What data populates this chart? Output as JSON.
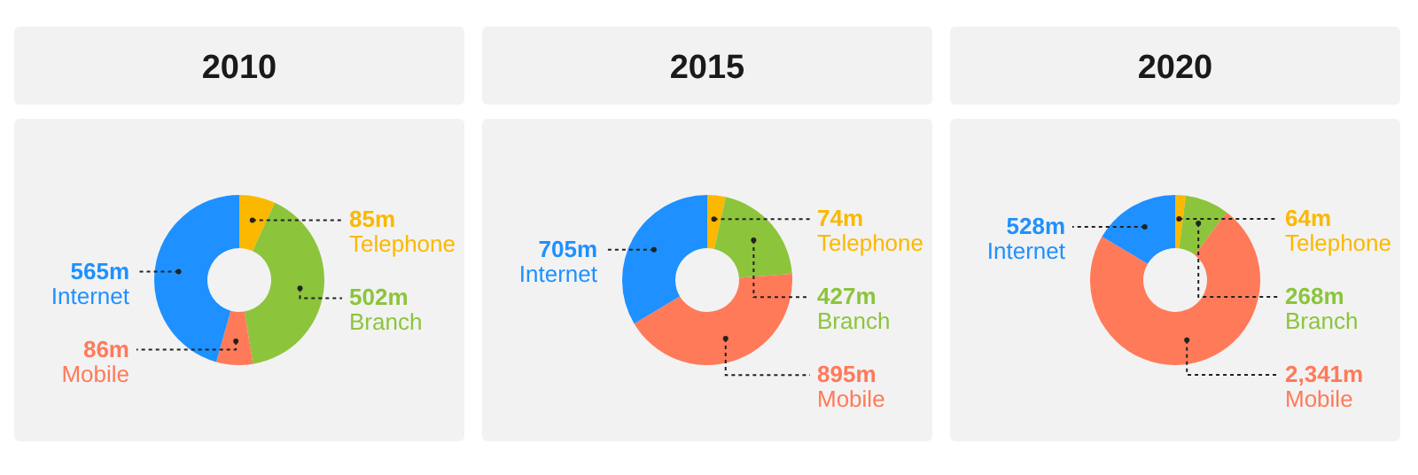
{
  "chart_data": [
    {
      "type": "donut",
      "title": "2010",
      "categories": [
        "Telephone",
        "Branch",
        "Mobile",
        "Internet"
      ],
      "values": [
        85,
        502,
        86,
        565
      ],
      "value_labels": [
        "85m",
        "502m",
        "86m",
        "565m"
      ],
      "colors": [
        "#fbb800",
        "#8cc43c",
        "#ff7a59",
        "#1e90ff"
      ]
    },
    {
      "type": "donut",
      "title": "2015",
      "categories": [
        "Telephone",
        "Branch",
        "Mobile",
        "Internet"
      ],
      "values": [
        74,
        427,
        895,
        705
      ],
      "value_labels": [
        "74m",
        "427m",
        "895m",
        "705m"
      ],
      "colors": [
        "#fbb800",
        "#8cc43c",
        "#ff7a59",
        "#1e90ff"
      ]
    },
    {
      "type": "donut",
      "title": "2020",
      "categories": [
        "Telephone",
        "Branch",
        "Mobile",
        "Internet"
      ],
      "values": [
        64,
        268,
        2341,
        528
      ],
      "value_labels": [
        "64m",
        "268m",
        "2,341m",
        "528m"
      ],
      "colors": [
        "#fbb800",
        "#8cc43c",
        "#ff7a59",
        "#1e90ff"
      ]
    }
  ]
}
